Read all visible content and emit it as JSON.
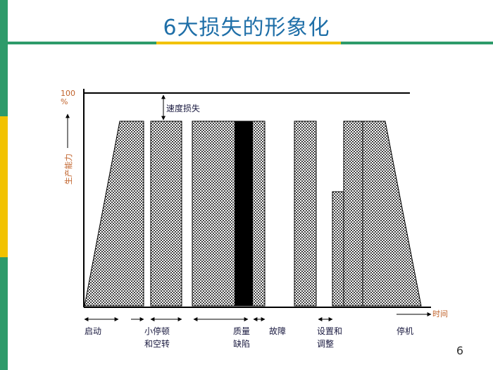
{
  "slide": {
    "title": "6大损失的形象化",
    "page_number": "6"
  },
  "colors": {
    "title": "#1f6fa8",
    "rule_green": "#2e9b6a",
    "rule_yellow": "#f2c200",
    "left_bar": [
      "#2e9b6a",
      "#f2c200",
      "#2e9b6a"
    ],
    "axis_label": "#c0622a",
    "bar_fill": "hatched-gray",
    "defect_fill": "#000000"
  },
  "diagram": {
    "y_top_label": "100\n%",
    "y_axis_label": "生产能力",
    "x_axis_label": "时间",
    "speed_loss_label": "速度损失",
    "loss_categories": [
      {
        "id": "startup",
        "label_lines": [
          "启动"
        ]
      },
      {
        "id": "minor-stops",
        "label_lines": [
          "小停顿",
          "和空转"
        ]
      },
      {
        "id": "quality-defects",
        "label_lines": [
          "质量",
          "缺陷"
        ]
      },
      {
        "id": "breakdowns",
        "label_lines": [
          "故障"
        ]
      },
      {
        "id": "setup",
        "label_lines": [
          "设置和",
          "调整"
        ]
      },
      {
        "id": "shutdown",
        "label_lines": [
          "停机"
        ]
      }
    ]
  }
}
